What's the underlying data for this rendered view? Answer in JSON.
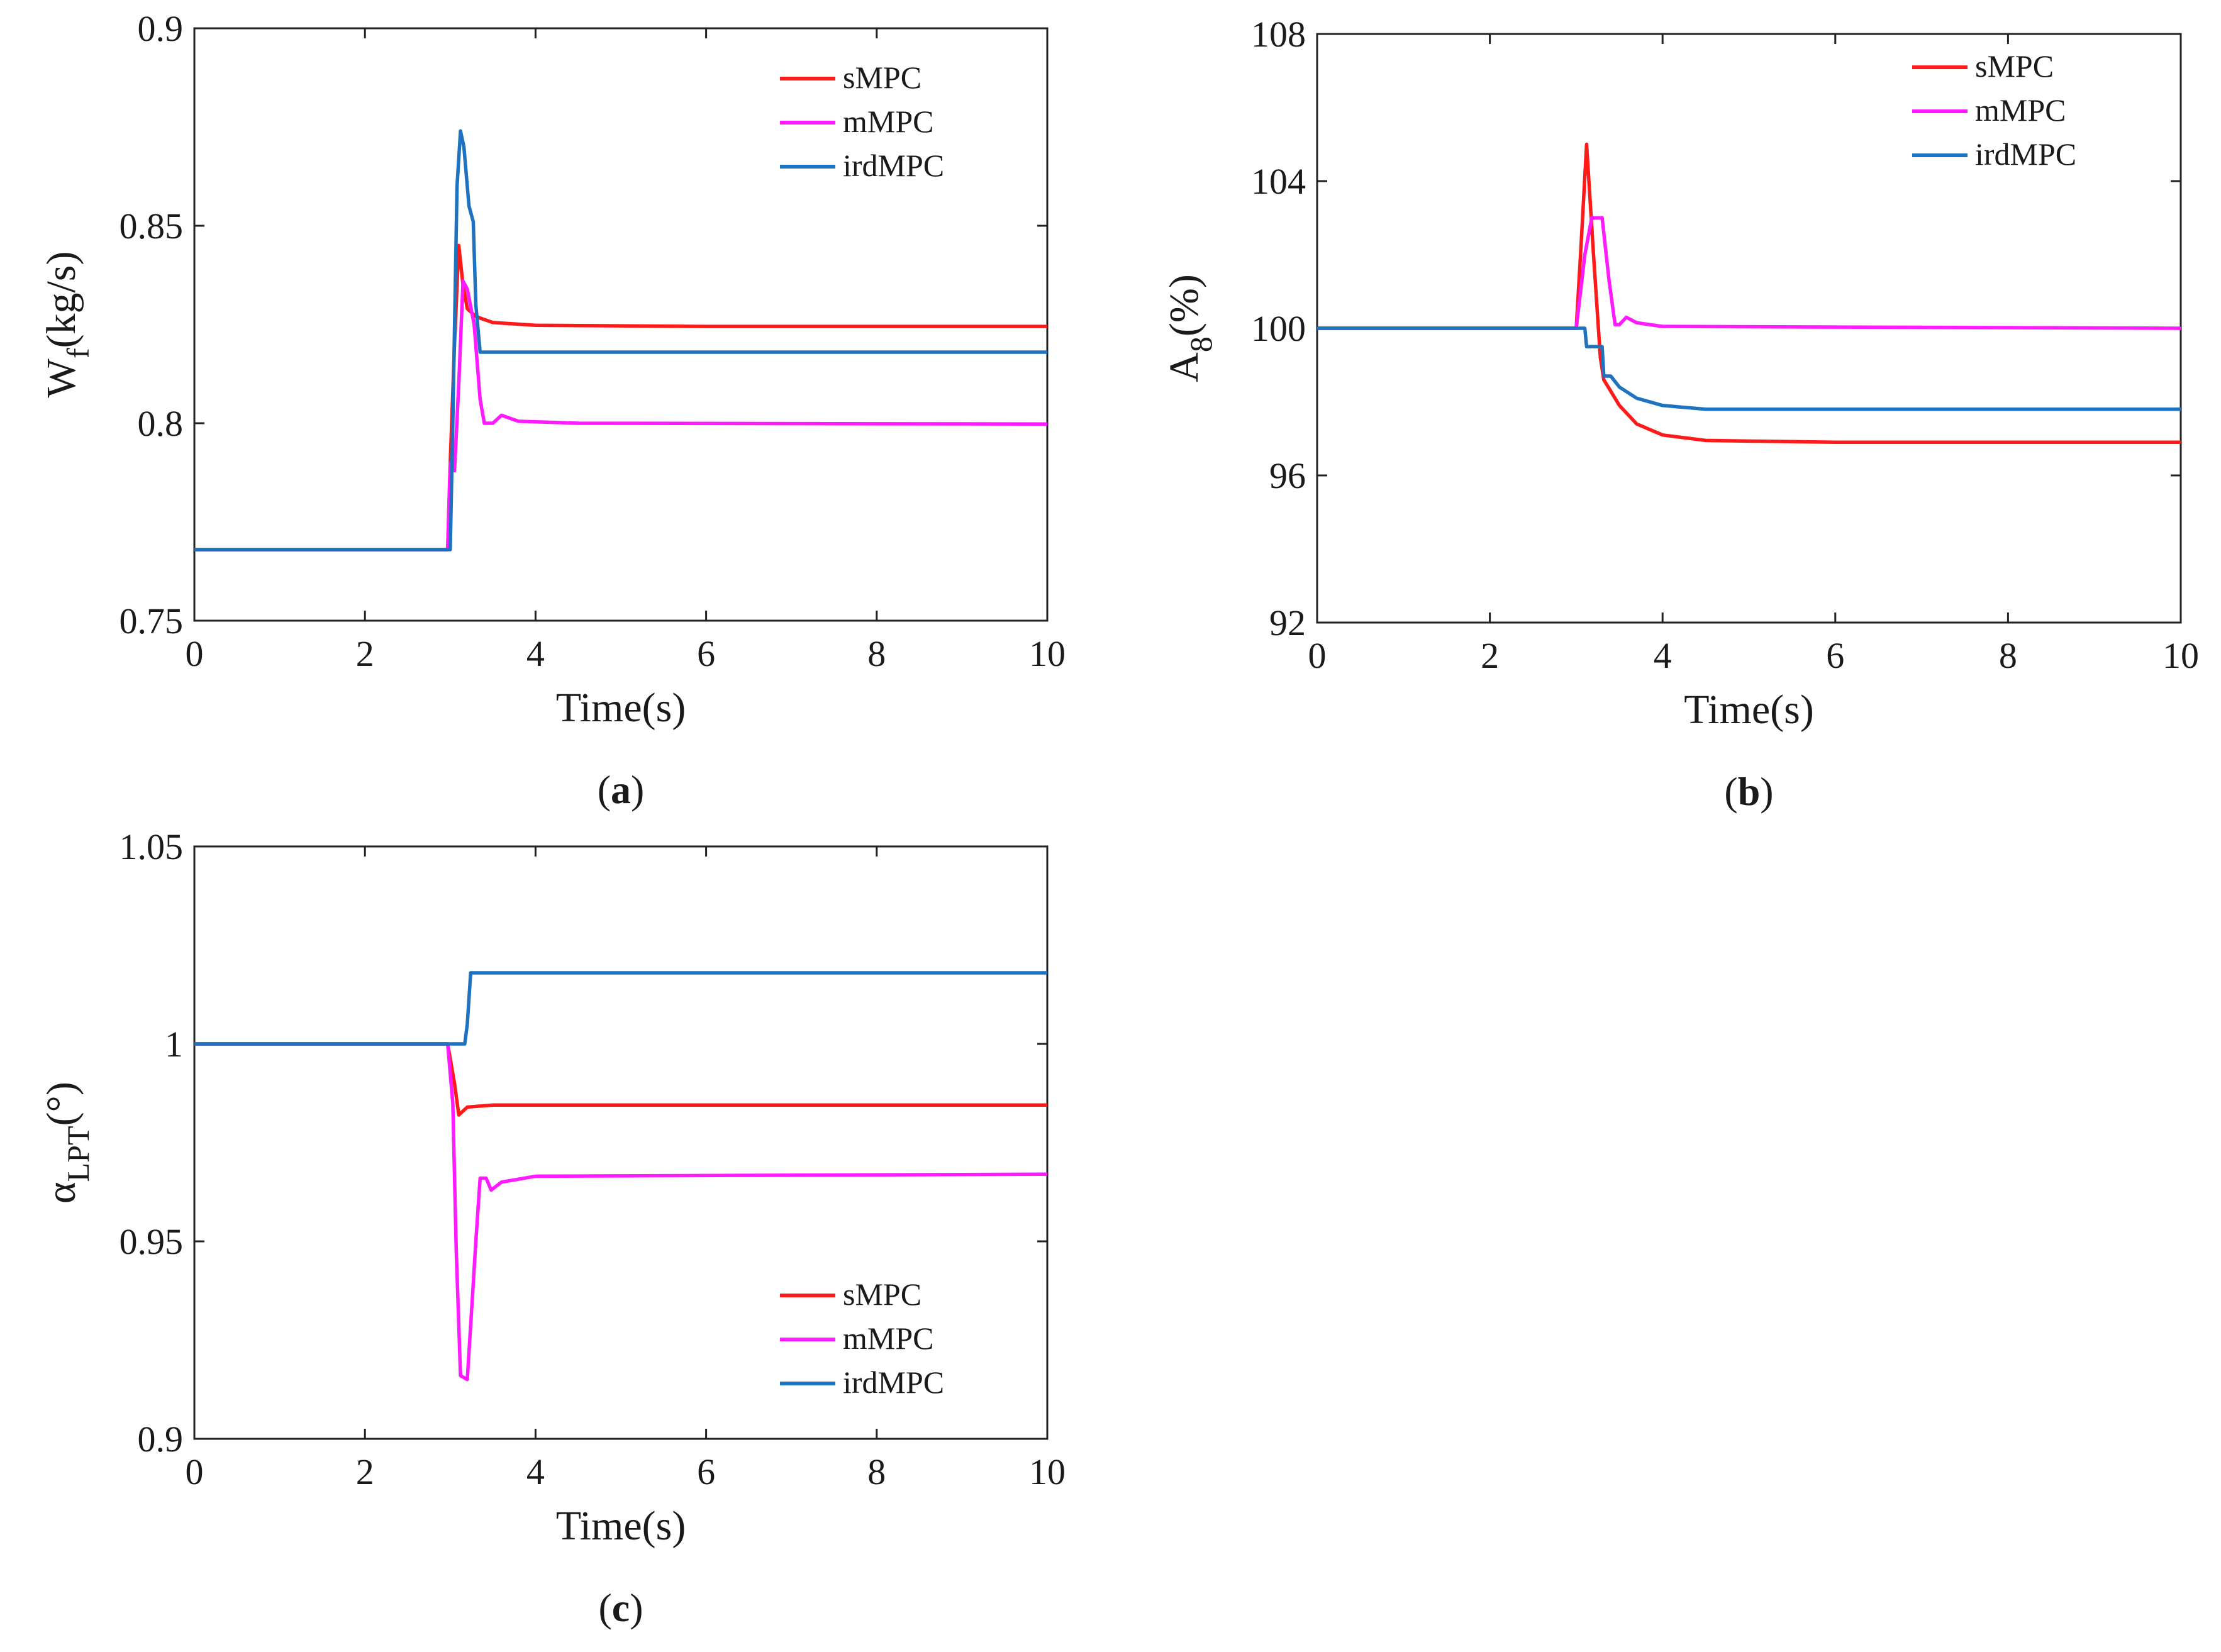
{
  "chart_data": [
    {
      "id": "a",
      "type": "line",
      "caption_letter": "a",
      "caption_open": "(",
      "caption_close": ")",
      "xlabel": "Time(s)",
      "ylabel_main": "W",
      "ylabel_sub": "f",
      "ylabel_unit": "(kg/s)",
      "xlim": [
        0,
        10
      ],
      "ylim": [
        0.75,
        0.9
      ],
      "xticks": [
        0,
        2,
        4,
        6,
        8,
        10
      ],
      "xtick_labels": [
        "0",
        "2",
        "4",
        "6",
        "8",
        "10"
      ],
      "yticks": [
        0.75,
        0.8,
        0.85,
        0.9
      ],
      "ytick_labels": [
        "0.75",
        "0.8",
        "0.85",
        "0.9"
      ],
      "legend_position": "top-right",
      "series": [
        {
          "name": "sMPC",
          "color": "#ff1a1a",
          "points": [
            [
              0,
              0.768
            ],
            [
              2.97,
              0.768
            ],
            [
              3.0,
              0.79
            ],
            [
              3.05,
              0.82
            ],
            [
              3.1,
              0.845
            ],
            [
              3.15,
              0.835
            ],
            [
              3.2,
              0.829
            ],
            [
              3.3,
              0.827
            ],
            [
              3.5,
              0.8255
            ],
            [
              4.0,
              0.8248
            ],
            [
              6,
              0.8245
            ],
            [
              10,
              0.8245
            ]
          ]
        },
        {
          "name": "mMPC",
          "color": "#ff1aff",
          "points": [
            [
              0,
              0.768
            ],
            [
              2.97,
              0.768
            ],
            [
              3.0,
              0.79
            ],
            [
              3.05,
              0.788
            ],
            [
              3.1,
              0.81
            ],
            [
              3.15,
              0.836
            ],
            [
              3.2,
              0.834
            ],
            [
              3.28,
              0.825
            ],
            [
              3.35,
              0.806
            ],
            [
              3.4,
              0.8
            ],
            [
              3.5,
              0.8
            ],
            [
              3.6,
              0.802
            ],
            [
              3.8,
              0.8005
            ],
            [
              4.5,
              0.8
            ],
            [
              10,
              0.7998
            ]
          ]
        },
        {
          "name": "irdMPC",
          "color": "#1f72bf",
          "points": [
            [
              0,
              0.768
            ],
            [
              3.0,
              0.768
            ],
            [
              3.03,
              0.8
            ],
            [
              3.08,
              0.86
            ],
            [
              3.12,
              0.874
            ],
            [
              3.16,
              0.87
            ],
            [
              3.22,
              0.855
            ],
            [
              3.27,
              0.851
            ],
            [
              3.3,
              0.83
            ],
            [
              3.35,
              0.818
            ],
            [
              4,
              0.818
            ],
            [
              10,
              0.818
            ]
          ]
        }
      ]
    },
    {
      "id": "b",
      "type": "line",
      "caption_letter": "b",
      "caption_open": "(",
      "caption_close": ")",
      "xlabel": "Time(s)",
      "ylabel_main": "A",
      "ylabel_sub": "8",
      "ylabel_unit": "(%)",
      "xlim": [
        0,
        10
      ],
      "ylim": [
        92,
        108
      ],
      "xticks": [
        0,
        2,
        4,
        6,
        8,
        10
      ],
      "xtick_labels": [
        "0",
        "2",
        "4",
        "6",
        "8",
        "10"
      ],
      "yticks": [
        92,
        96,
        100,
        104,
        108
      ],
      "ytick_labels": [
        "92",
        "96",
        "100",
        "104",
        "108"
      ],
      "legend_position": "top-right",
      "series": [
        {
          "name": "sMPC",
          "color": "#ff1a1a",
          "points": [
            [
              0,
              100
            ],
            [
              3.0,
              100
            ],
            [
              3.05,
              102
            ],
            [
              3.12,
              105
            ],
            [
              3.2,
              102
            ],
            [
              3.28,
              99.2
            ],
            [
              3.32,
              98.6
            ],
            [
              3.5,
              97.9
            ],
            [
              3.7,
              97.4
            ],
            [
              4.0,
              97.1
            ],
            [
              4.5,
              96.95
            ],
            [
              6,
              96.9
            ],
            [
              10,
              96.9
            ]
          ]
        },
        {
          "name": "mMPC",
          "color": "#ff1aff",
          "points": [
            [
              0,
              100
            ],
            [
              3.0,
              100
            ],
            [
              3.05,
              101
            ],
            [
              3.1,
              102
            ],
            [
              3.18,
              103
            ],
            [
              3.3,
              103
            ],
            [
              3.38,
              101.3
            ],
            [
              3.45,
              100.1
            ],
            [
              3.5,
              100.1
            ],
            [
              3.58,
              100.3
            ],
            [
              3.7,
              100.15
            ],
            [
              4.0,
              100.05
            ],
            [
              10,
              100.0
            ]
          ]
        },
        {
          "name": "irdMPC",
          "color": "#1f72bf",
          "points": [
            [
              0,
              100
            ],
            [
              3.1,
              100
            ],
            [
              3.12,
              99.5
            ],
            [
              3.3,
              99.5
            ],
            [
              3.32,
              98.7
            ],
            [
              3.4,
              98.7
            ],
            [
              3.5,
              98.4
            ],
            [
              3.7,
              98.1
            ],
            [
              4.0,
              97.9
            ],
            [
              4.5,
              97.8
            ],
            [
              10,
              97.8
            ]
          ]
        }
      ]
    },
    {
      "id": "c",
      "type": "line",
      "caption_letter": "c",
      "caption_open": "(",
      "caption_close": ")",
      "xlabel": "Time(s)",
      "ylabel_main": "α",
      "ylabel_sub": "LPT",
      "ylabel_unit": "(°)",
      "xlim": [
        0,
        10
      ],
      "ylim": [
        0.9,
        1.05
      ],
      "xticks": [
        0,
        2,
        4,
        6,
        8,
        10
      ],
      "xtick_labels": [
        "0",
        "2",
        "4",
        "6",
        "8",
        "10"
      ],
      "yticks": [
        0.9,
        0.95,
        1.0,
        1.05
      ],
      "ytick_labels": [
        "0.9",
        "0.95",
        "1",
        "1.05"
      ],
      "legend_position": "bottom-right",
      "series": [
        {
          "name": "sMPC",
          "color": "#ff1a1a",
          "points": [
            [
              0,
              1.0
            ],
            [
              2.97,
              1.0
            ],
            [
              3.05,
              0.99
            ],
            [
              3.1,
              0.982
            ],
            [
              3.2,
              0.984
            ],
            [
              3.5,
              0.9845
            ],
            [
              10,
              0.9845
            ]
          ]
        },
        {
          "name": "mMPC",
          "color": "#ff1aff",
          "points": [
            [
              0,
              1.0
            ],
            [
              2.97,
              1.0
            ],
            [
              3.03,
              0.985
            ],
            [
              3.07,
              0.948
            ],
            [
              3.12,
              0.916
            ],
            [
              3.2,
              0.915
            ],
            [
              3.26,
              0.936
            ],
            [
              3.3,
              0.95
            ],
            [
              3.35,
              0.966
            ],
            [
              3.42,
              0.966
            ],
            [
              3.48,
              0.963
            ],
            [
              3.6,
              0.965
            ],
            [
              4.0,
              0.9665
            ],
            [
              10,
              0.967
            ]
          ]
        },
        {
          "name": "irdMPC",
          "color": "#1f72bf",
          "points": [
            [
              0,
              1.0
            ],
            [
              3.17,
              1.0
            ],
            [
              3.2,
              1.005
            ],
            [
              3.24,
              1.018
            ],
            [
              10,
              1.018
            ]
          ]
        }
      ]
    }
  ]
}
